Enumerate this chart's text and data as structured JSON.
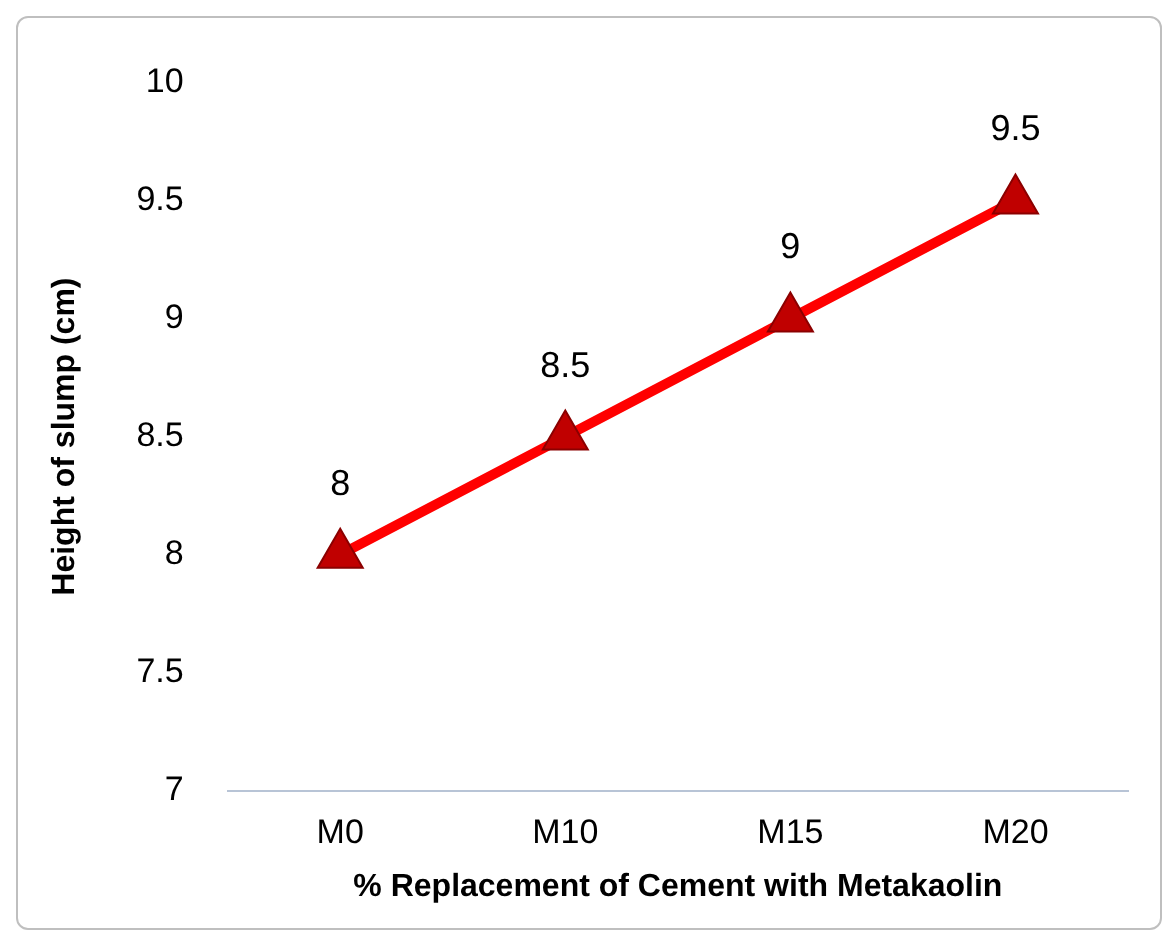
{
  "chart_data": {
    "type": "line",
    "xlabel": "% Replacement of Cement with Metakaolin",
    "ylabel": "Height of slump (cm)",
    "categories": [
      "M0",
      "M10",
      "M15",
      "M20"
    ],
    "series": [
      {
        "color": "#ff0000",
        "values": [
          8,
          8.5,
          9,
          9.5
        ]
      }
    ],
    "ylim": [
      7,
      10
    ],
    "yticks": [
      7,
      7.5,
      8,
      8.5,
      9,
      9.5,
      10
    ],
    "grid": false,
    "legend": false,
    "marker": "triangle",
    "line_style": "solid",
    "data_labels": true
  }
}
